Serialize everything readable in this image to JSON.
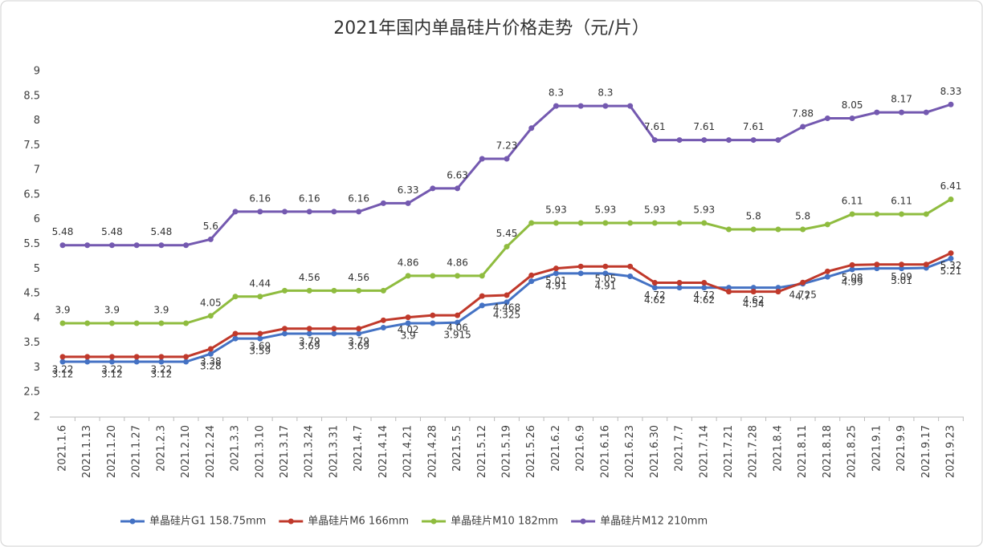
{
  "chart_data": {
    "type": "line",
    "title": "2021年国内单晶硅片价格走势（元/片）",
    "categories": [
      "2021.1.6",
      "2021.1.13",
      "2021.1.20",
      "2021.1.27",
      "2021.2.3",
      "2021.2.10",
      "2021.2.24",
      "2021.3.3",
      "2021.3.10",
      "2021.3.17",
      "2021.3.24",
      "2021.3.31",
      "2021.4.7",
      "2021.4.14",
      "2021.4.21",
      "2021.4.28",
      "2021.5.5",
      "2021.5.12",
      "2021.5.19",
      "2021.5.26",
      "2021.6.2",
      "2021.6.9",
      "2021.6.16",
      "2021.6.23",
      "2021.6.30",
      "2021.7.7",
      "2021.7.14",
      "2021.7.21",
      "2021.7.28",
      "2021.8.4",
      "2021.8.11",
      "2021.8.18",
      "2021.8.25",
      "2021.9.1",
      "2021.9.9",
      "2021.9.17",
      "2021.9.23"
    ],
    "series": [
      {
        "name": "单晶硅片G1 158.75mm",
        "color": "#4472c4",
        "values": [
          3.12,
          3.12,
          3.12,
          3.12,
          3.12,
          3.12,
          3.28,
          3.59,
          3.59,
          3.69,
          3.69,
          3.69,
          3.69,
          3.81,
          3.9,
          3.9,
          3.915,
          4.26,
          4.325,
          4.75,
          4.91,
          4.91,
          4.91,
          4.85,
          4.62,
          4.62,
          4.62,
          4.62,
          4.62,
          4.62,
          4.7,
          4.84,
          4.99,
          5.01,
          5.01,
          5.02,
          5.21
        ]
      },
      {
        "name": "单晶硅片M6 166mm",
        "color": "#c0392b",
        "values": [
          3.22,
          3.22,
          3.22,
          3.22,
          3.22,
          3.22,
          3.38,
          3.69,
          3.69,
          3.79,
          3.79,
          3.79,
          3.79,
          3.96,
          4.02,
          4.06,
          4.06,
          4.45,
          4.468,
          4.87,
          5.01,
          5.05,
          5.05,
          5.05,
          4.72,
          4.72,
          4.72,
          4.54,
          4.54,
          4.54,
          4.725,
          4.95,
          5.08,
          5.09,
          5.09,
          5.09,
          5.32
        ]
      },
      {
        "name": "单晶硅片M10 182mm",
        "color": "#8fbc3f",
        "values": [
          3.9,
          3.9,
          3.9,
          3.9,
          3.9,
          3.9,
          4.05,
          4.44,
          4.44,
          4.56,
          4.56,
          4.56,
          4.56,
          4.56,
          4.86,
          4.86,
          4.86,
          4.86,
          5.45,
          5.93,
          5.93,
          5.93,
          5.93,
          5.93,
          5.93,
          5.93,
          5.93,
          5.8,
          5.8,
          5.8,
          5.8,
          5.9,
          6.11,
          6.11,
          6.11,
          6.11,
          6.41
        ]
      },
      {
        "name": "单晶硅片M12 210mm",
        "color": "#7459b0",
        "values": [
          5.48,
          5.48,
          5.48,
          5.48,
          5.48,
          5.48,
          5.6,
          6.16,
          6.16,
          6.16,
          6.16,
          6.16,
          6.16,
          6.33,
          6.33,
          6.63,
          6.63,
          7.23,
          7.23,
          7.85,
          8.3,
          8.3,
          8.3,
          8.3,
          7.61,
          7.61,
          7.61,
          7.61,
          7.61,
          7.61,
          7.88,
          8.05,
          8.05,
          8.17,
          8.17,
          8.17,
          8.33
        ]
      }
    ],
    "ylim": [
      2,
      9
    ],
    "yticks": [
      2,
      2.5,
      3,
      3.5,
      4,
      4.5,
      5,
      5.5,
      6,
      6.5,
      7,
      7.5,
      8,
      8.5,
      9
    ],
    "grid": false,
    "legend": "bottom"
  }
}
